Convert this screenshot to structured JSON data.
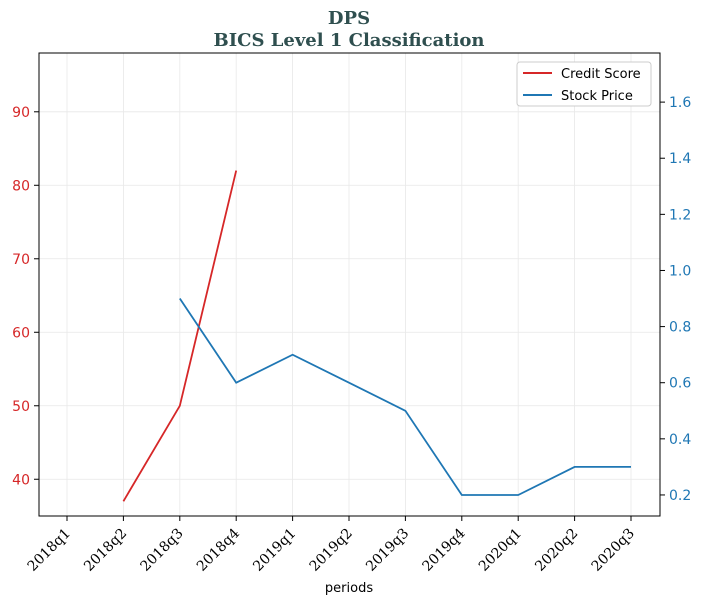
{
  "chart_data": {
    "type": "line",
    "title": "DPS",
    "subtitle": "BICS Level 1 Classification",
    "xlabel": "periods",
    "categories": [
      "2018q1",
      "2018q2",
      "2018q3",
      "2018q4",
      "2019q1",
      "2019q2",
      "2019q3",
      "2019q4",
      "2020q1",
      "2020q2",
      "2020q3"
    ],
    "series": [
      {
        "name": "Credit Score",
        "axis": "left",
        "color": "#d62728",
        "values": [
          null,
          37,
          50,
          82,
          null,
          null,
          null,
          null,
          null,
          null,
          null
        ]
      },
      {
        "name": "Stock Price",
        "axis": "right",
        "color": "#1f77b4",
        "values": [
          null,
          null,
          0.9,
          0.6,
          0.7,
          0.6,
          0.5,
          0.2,
          0.2,
          0.3,
          0.3
        ]
      }
    ],
    "y_left": {
      "ylim": [
        35,
        98
      ],
      "ticks": [
        40,
        50,
        60,
        70,
        80,
        90
      ],
      "color": "#d62728"
    },
    "y_right": {
      "ylim": [
        0.125,
        1.775
      ],
      "ticks": [
        "0.2",
        "0.4",
        "0.6",
        "0.8",
        "1.0",
        "1.2",
        "1.4",
        "1.6"
      ],
      "color": "#1f77b4"
    },
    "grid": true,
    "legend_position": "top-right"
  }
}
